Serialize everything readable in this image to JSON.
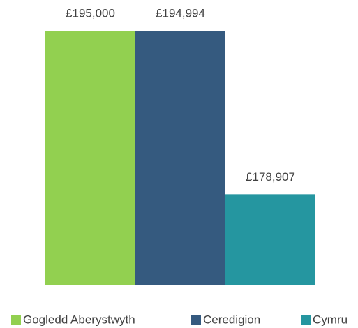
{
  "chart_data": {
    "type": "bar",
    "categories": [
      null
    ],
    "series": [
      {
        "name": "Gogledd Aberystwyth",
        "color": "#92d050",
        "values": [
          195000
        ],
        "value_labels": [
          "£195,000"
        ]
      },
      {
        "name": "Ceredigion",
        "color": "#355a7f",
        "values": [
          194994
        ],
        "value_labels": [
          "£194,994"
        ]
      },
      {
        "name": "Cymru",
        "color": "#2596a0",
        "values": [
          178907
        ],
        "value_labels": [
          "£178,907"
        ]
      }
    ],
    "ylim": [
      170000,
      197000
    ],
    "legend": "bottom"
  }
}
